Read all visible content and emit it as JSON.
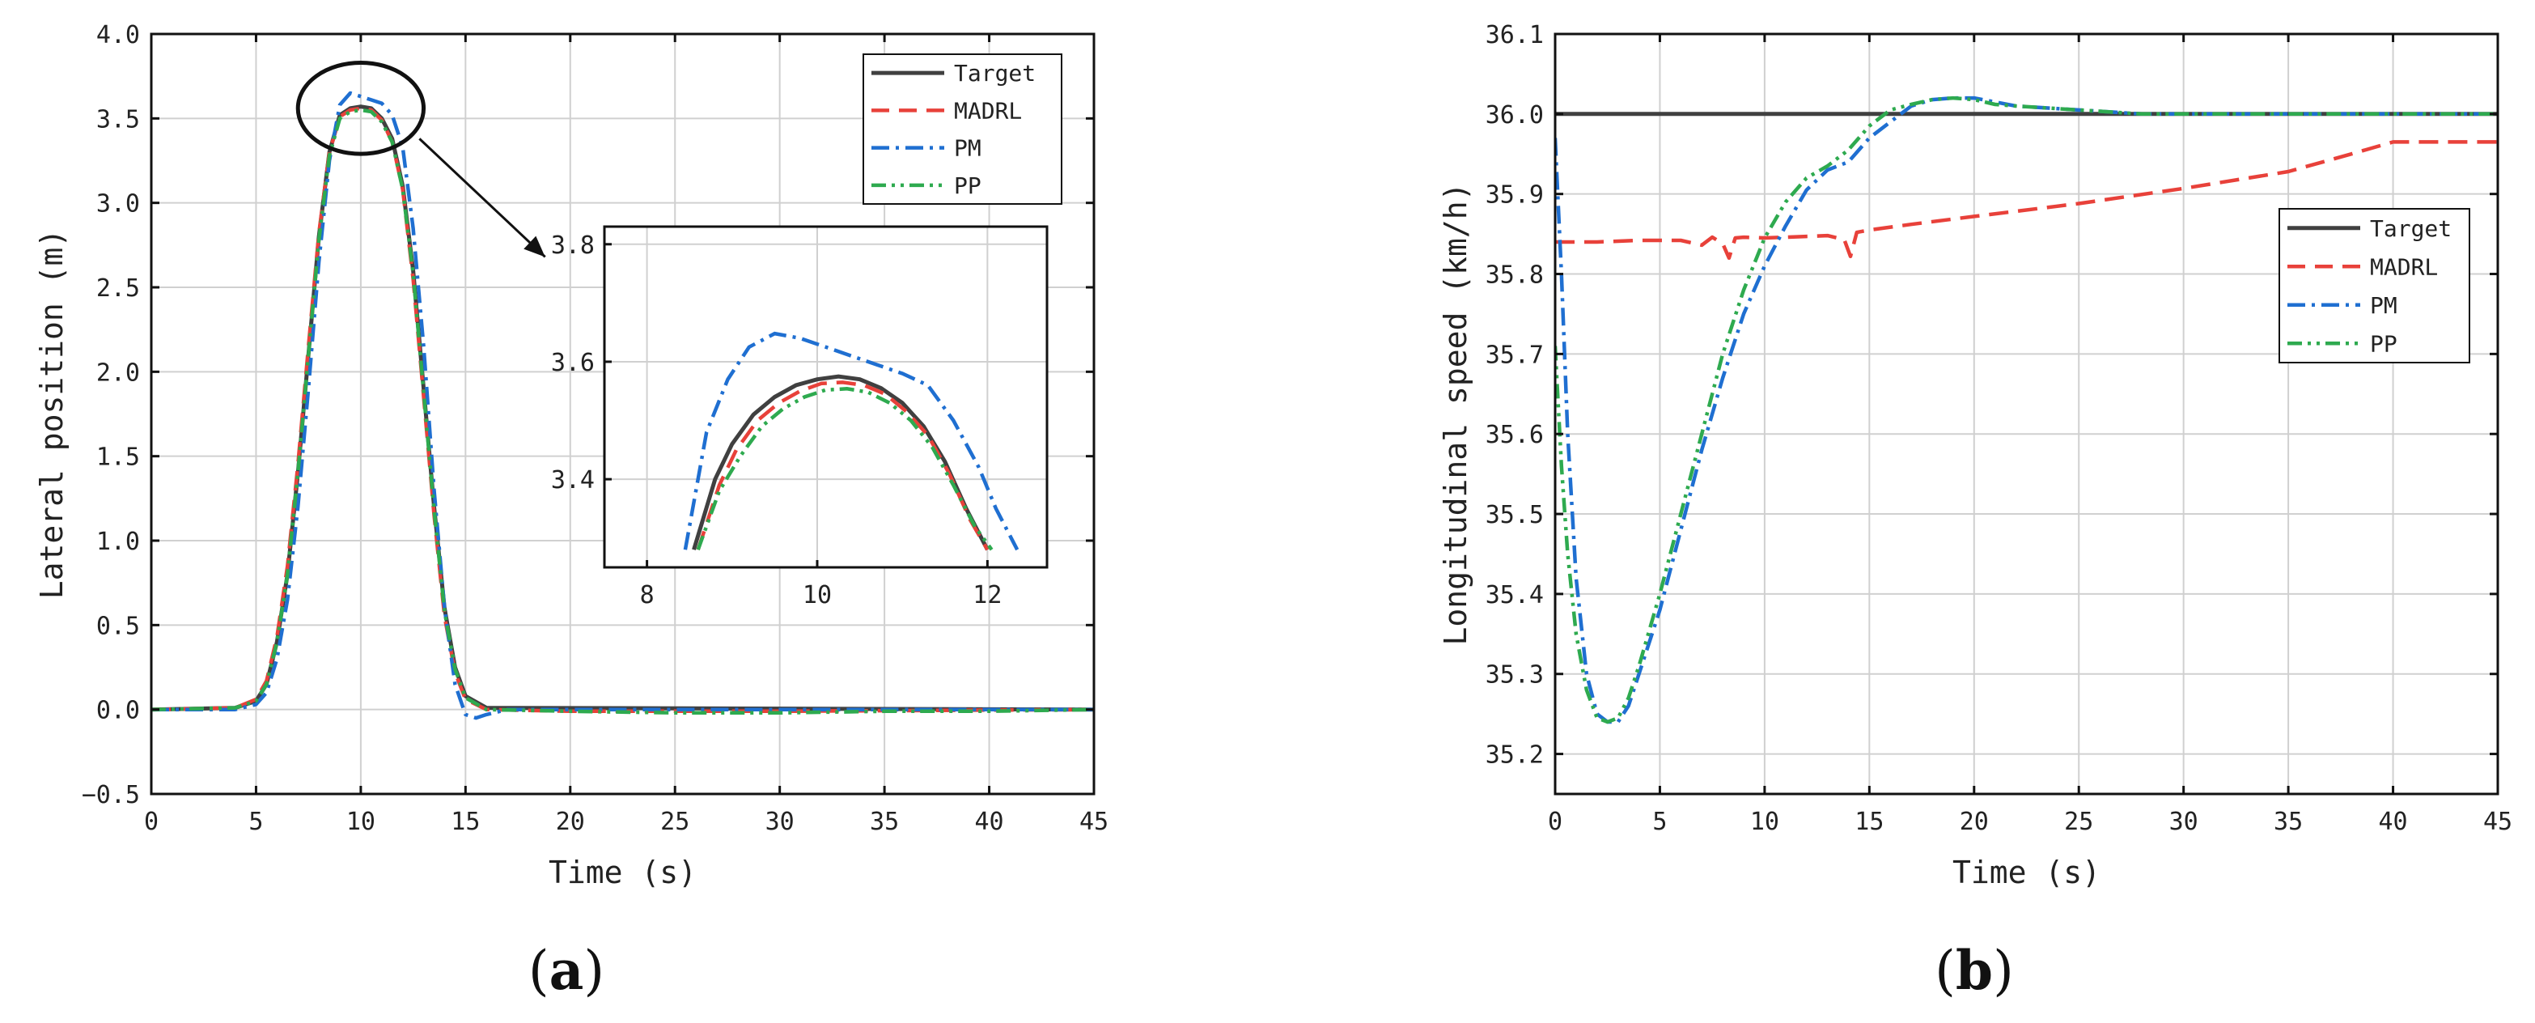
{
  "chart_data": [
    {
      "id": "a",
      "type": "line",
      "panel_label_open": "(",
      "panel_label_letter": "a",
      "panel_label_close": ")",
      "title": "",
      "xlabel": "Time (s)",
      "ylabel": "Lateral position (m)",
      "xlim": [
        0,
        45
      ],
      "ylim": [
        -0.5,
        4.0
      ],
      "xticks": [
        0,
        5,
        10,
        15,
        20,
        25,
        30,
        35,
        40,
        45
      ],
      "yticks": [
        -0.5,
        0.0,
        0.5,
        1.0,
        1.5,
        2.0,
        2.5,
        3.0,
        3.5,
        4.0
      ],
      "ytick_labels": [
        "−0.5",
        "0.0",
        "0.5",
        "1.0",
        "1.5",
        "2.0",
        "2.5",
        "3.0",
        "3.5",
        "4.0"
      ],
      "grid": true,
      "legend_position": "top-right",
      "series": [
        {
          "name": "Target",
          "color": "#404040",
          "dash": "solid",
          "x": [
            0,
            4,
            5,
            5.5,
            6,
            6.5,
            7,
            7.5,
            8,
            8.5,
            9,
            9.5,
            10,
            10.5,
            11,
            11.5,
            12,
            12.5,
            13,
            13.5,
            14,
            14.5,
            15,
            16,
            45
          ],
          "y": [
            0,
            0.01,
            0.05,
            0.15,
            0.4,
            0.8,
            1.4,
            2.1,
            2.8,
            3.3,
            3.52,
            3.56,
            3.57,
            3.56,
            3.5,
            3.38,
            3.1,
            2.6,
            1.9,
            1.2,
            0.6,
            0.25,
            0.08,
            0.01,
            0
          ]
        },
        {
          "name": "MADRL",
          "color": "#e8413a",
          "dash": "dash",
          "x": [
            0,
            4,
            5,
            5.5,
            6,
            6.5,
            7,
            7.5,
            8,
            8.5,
            9,
            9.5,
            10,
            10.5,
            11,
            11.5,
            12,
            12.5,
            13,
            13.5,
            14,
            14.5,
            15,
            16,
            20,
            30,
            45
          ],
          "y": [
            0,
            0.01,
            0.06,
            0.17,
            0.43,
            0.85,
            1.45,
            2.15,
            2.82,
            3.3,
            3.51,
            3.55,
            3.56,
            3.55,
            3.49,
            3.36,
            3.08,
            2.55,
            1.85,
            1.15,
            0.55,
            0.22,
            0.06,
            0.0,
            -0.01,
            -0.01,
            0
          ]
        },
        {
          "name": "PM",
          "color": "#1f6fd1",
          "dash": "dashdot",
          "x": [
            0,
            4,
            5,
            5.5,
            6,
            6.5,
            7,
            7.5,
            8,
            8.5,
            9,
            9.5,
            10,
            10.5,
            11,
            11.5,
            12,
            12.5,
            13,
            13.5,
            14,
            14.5,
            15,
            15.5,
            16,
            17,
            20,
            45
          ],
          "y": [
            0,
            0.0,
            0.03,
            0.1,
            0.3,
            0.65,
            1.2,
            1.9,
            2.65,
            3.25,
            3.58,
            3.65,
            3.63,
            3.61,
            3.59,
            3.52,
            3.33,
            2.85,
            2.15,
            1.3,
            0.6,
            0.15,
            -0.03,
            -0.05,
            -0.03,
            0.0,
            0.0,
            0
          ]
        },
        {
          "name": "PP",
          "color": "#2eaa4f",
          "dash": "dashdotdot",
          "x": [
            0,
            4,
            5,
            5.5,
            6,
            6.5,
            7,
            7.5,
            8,
            8.5,
            9,
            9.5,
            10,
            10.5,
            11,
            11.5,
            12,
            12.5,
            13,
            13.5,
            14,
            14.5,
            15,
            16,
            20,
            25,
            30,
            35,
            40,
            45
          ],
          "y": [
            0,
            0.01,
            0.05,
            0.15,
            0.4,
            0.8,
            1.4,
            2.1,
            2.78,
            3.28,
            3.5,
            3.54,
            3.55,
            3.54,
            3.48,
            3.36,
            3.08,
            2.58,
            1.88,
            1.18,
            0.58,
            0.24,
            0.07,
            0.0,
            -0.01,
            -0.02,
            -0.02,
            -0.01,
            -0.01,
            0
          ]
        }
      ],
      "annotations": [
        {
          "type": "ellipse",
          "cx": 10,
          "cy": 3.56,
          "rx": 3,
          "ry": 0.27
        },
        {
          "type": "arrow",
          "from": [
            12.8,
            3.38
          ],
          "to": [
            18.8,
            2.68
          ]
        }
      ],
      "inset": {
        "xlim": [
          7.5,
          12.7
        ],
        "ylim": [
          3.25,
          3.83
        ],
        "xticks": [
          8,
          10,
          12
        ],
        "yticks": [
          3.4,
          3.6,
          3.8
        ],
        "ytick_labels": [
          "3.4",
          "3.6",
          "3.8"
        ],
        "series": [
          {
            "name": "Target",
            "x": [
              8.55,
              8.8,
              9.0,
              9.25,
              9.5,
              9.75,
              10.0,
              10.25,
              10.5,
              10.75,
              11.0,
              11.25,
              11.5,
              11.75,
              12.0
            ],
            "y": [
              3.28,
              3.4,
              3.46,
              3.51,
              3.54,
              3.56,
              3.57,
              3.575,
              3.57,
              3.555,
              3.53,
              3.49,
              3.43,
              3.35,
              3.28
            ]
          },
          {
            "name": "MADRL",
            "x": [
              8.6,
              8.85,
              9.05,
              9.3,
              9.55,
              9.8,
              10.05,
              10.3,
              10.55,
              10.8,
              11.05,
              11.3,
              11.55,
              11.8,
              12.0
            ],
            "y": [
              3.28,
              3.39,
              3.45,
              3.5,
              3.53,
              3.55,
              3.563,
              3.565,
              3.56,
              3.545,
              3.515,
              3.475,
              3.41,
              3.33,
              3.28
            ]
          },
          {
            "name": "PM",
            "x": [
              8.45,
              8.7,
              8.95,
              9.2,
              9.5,
              9.8,
              10.1,
              10.4,
              10.7,
              11.0,
              11.3,
              11.6,
              11.9,
              12.1,
              12.35
            ],
            "y": [
              3.28,
              3.48,
              3.57,
              3.625,
              3.648,
              3.64,
              3.625,
              3.61,
              3.595,
              3.58,
              3.56,
              3.5,
              3.42,
              3.35,
              3.28
            ]
          },
          {
            "name": "PP",
            "x": [
              8.6,
              8.85,
              9.1,
              9.35,
              9.6,
              9.85,
              10.1,
              10.35,
              10.6,
              10.85,
              11.1,
              11.35,
              11.6,
              11.85,
              12.05
            ],
            "y": [
              3.28,
              3.38,
              3.44,
              3.49,
              3.52,
              3.54,
              3.552,
              3.554,
              3.548,
              3.53,
              3.5,
              3.455,
              3.39,
              3.32,
              3.28
            ]
          }
        ]
      }
    },
    {
      "id": "b",
      "type": "line",
      "panel_label_open": "(",
      "panel_label_letter": "b",
      "panel_label_close": ")",
      "title": "",
      "xlabel": "Time (s)",
      "ylabel": "Longitudinal speed (km/h)",
      "xlim": [
        0,
        45
      ],
      "ylim": [
        35.15,
        36.1
      ],
      "xticks": [
        0,
        5,
        10,
        15,
        20,
        25,
        30,
        35,
        40,
        45
      ],
      "yticks": [
        35.2,
        35.3,
        35.4,
        35.5,
        35.6,
        35.7,
        35.8,
        35.9,
        36.0,
        36.1
      ],
      "ytick_labels": [
        "35.2",
        "35.3",
        "35.4",
        "35.5",
        "35.6",
        "35.7",
        "35.8",
        "35.9",
        "36.0",
        "36.1"
      ],
      "grid": true,
      "legend_position": "right",
      "series": [
        {
          "name": "Target",
          "color": "#404040",
          "dash": "solid",
          "x": [
            0,
            45
          ],
          "y": [
            36.0,
            36.0
          ]
        },
        {
          "name": "MADRL",
          "color": "#e8413a",
          "dash": "dash",
          "x": [
            0,
            2,
            4,
            6,
            7,
            7.5,
            8,
            8.3,
            8.6,
            9,
            10,
            11,
            12,
            13,
            13.8,
            14.1,
            14.4,
            15,
            17,
            20,
            25,
            30,
            35,
            38,
            40,
            45
          ],
          "y": [
            35.84,
            35.84,
            35.842,
            35.842,
            35.836,
            35.846,
            35.838,
            35.82,
            35.845,
            35.846,
            35.845,
            35.846,
            35.847,
            35.848,
            35.843,
            35.822,
            35.852,
            35.855,
            35.862,
            35.872,
            35.888,
            35.907,
            35.928,
            35.95,
            35.965,
            35.965
          ]
        },
        {
          "name": "PM",
          "color": "#1f6fd1",
          "dash": "dashdot",
          "x": [
            0,
            0.3,
            0.6,
            1.0,
            1.5,
            2.0,
            2.5,
            3.0,
            3.5,
            4.0,
            5,
            6,
            7,
            8,
            9,
            10,
            11,
            12,
            13,
            14,
            15,
            16,
            17,
            18,
            19,
            20,
            21,
            22,
            25,
            28,
            30,
            45
          ],
          "y": [
            35.97,
            35.8,
            35.6,
            35.42,
            35.3,
            35.25,
            35.24,
            35.24,
            35.26,
            35.3,
            35.38,
            35.48,
            35.58,
            35.67,
            35.75,
            35.81,
            35.86,
            35.905,
            35.93,
            35.94,
            35.97,
            35.99,
            36.01,
            36.018,
            36.02,
            36.02,
            36.015,
            36.01,
            36.005,
            36.0,
            36.0,
            36.0
          ]
        },
        {
          "name": "PP",
          "color": "#2eaa4f",
          "dash": "dashdotdot",
          "x": [
            0,
            0.3,
            0.6,
            1.0,
            1.5,
            2.0,
            2.5,
            3.0,
            3.5,
            4.0,
            5,
            6,
            7,
            8,
            9,
            10,
            11,
            12,
            13,
            14,
            15,
            16,
            17,
            18,
            19,
            20,
            21,
            22,
            25,
            28,
            30,
            45
          ],
          "y": [
            35.71,
            35.56,
            35.45,
            35.35,
            35.28,
            35.245,
            35.24,
            35.245,
            35.27,
            35.31,
            35.4,
            35.5,
            35.6,
            35.7,
            35.78,
            35.845,
            35.89,
            35.92,
            35.935,
            35.955,
            35.985,
            36.005,
            36.012,
            36.018,
            36.02,
            36.018,
            36.012,
            36.01,
            36.005,
            36.0,
            36.0,
            36.0
          ]
        }
      ]
    }
  ]
}
